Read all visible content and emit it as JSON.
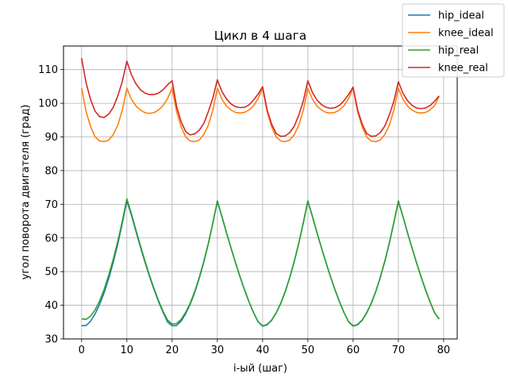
{
  "chart_data": {
    "type": "line",
    "title": "Цикл в 4 шага",
    "xlabel": "i-ый (шаг)",
    "ylabel": "угол поворота двигателя (град)",
    "xlim": [
      -4,
      83
    ],
    "ylim": [
      30,
      117
    ],
    "xticks": [
      0,
      10,
      20,
      30,
      40,
      50,
      60,
      70,
      80
    ],
    "yticks": [
      30,
      40,
      50,
      60,
      70,
      80,
      90,
      100,
      110
    ],
    "grid": true,
    "legend_position": "top-right",
    "x": [
      0,
      1,
      2,
      3,
      4,
      5,
      6,
      7,
      8,
      9,
      10,
      11,
      12,
      13,
      14,
      15,
      16,
      17,
      18,
      19,
      20,
      21,
      22,
      23,
      24,
      25,
      26,
      27,
      28,
      29,
      30,
      31,
      32,
      33,
      34,
      35,
      36,
      37,
      38,
      39,
      40,
      41,
      42,
      43,
      44,
      45,
      46,
      47,
      48,
      49,
      50,
      51,
      52,
      53,
      54,
      55,
      56,
      57,
      58,
      59,
      60,
      61,
      62,
      63,
      64,
      65,
      66,
      67,
      68,
      69,
      70,
      71,
      72,
      73,
      74,
      75,
      76,
      77,
      78,
      79
    ],
    "series": [
      {
        "name": "hip_ideal",
        "color": "#1f77b4",
        "values": [
          33.9,
          34.0,
          35.3,
          37.5,
          40.3,
          43.8,
          48.0,
          52.8,
          58.2,
          64.4,
          71.0,
          66.8,
          62.0,
          57.3,
          52.8,
          48.6,
          44.7,
          41.1,
          37.9,
          35.0,
          33.9,
          34.0,
          35.3,
          37.5,
          40.3,
          43.8,
          48.0,
          52.8,
          58.2,
          64.4,
          71.0,
          66.4,
          61.6,
          57.1,
          52.7,
          48.5,
          44.6,
          41.0,
          37.8,
          35.1,
          33.9,
          34.3,
          35.6,
          37.8,
          40.6,
          44.1,
          48.3,
          53.1,
          58.5,
          64.6,
          71.0,
          66.4,
          61.6,
          57.1,
          52.7,
          48.5,
          44.6,
          41.0,
          37.8,
          35.1,
          33.9,
          34.3,
          35.6,
          37.8,
          40.6,
          44.1,
          48.3,
          53.1,
          58.5,
          64.6,
          71.0,
          66.4,
          61.6,
          57.1,
          52.7,
          48.5,
          44.6,
          41.0,
          37.8,
          36.0
        ]
      },
      {
        "name": "knee_ideal",
        "color": "#ff7f0e",
        "values": [
          104.5,
          97.5,
          93.0,
          90.0,
          88.8,
          88.6,
          89.1,
          90.7,
          93.5,
          98.0,
          104.5,
          101.2,
          99.2,
          98.0,
          97.2,
          97.0,
          97.2,
          98.0,
          99.3,
          101.4,
          104.5,
          97.5,
          93.0,
          90.0,
          88.8,
          88.6,
          89.1,
          90.7,
          93.5,
          98.0,
          104.5,
          101.2,
          99.2,
          98.0,
          97.3,
          97.1,
          97.3,
          98.0,
          99.3,
          101.4,
          104.5,
          97.5,
          93.0,
          90.0,
          88.8,
          88.6,
          89.1,
          90.7,
          93.5,
          98.0,
          104.5,
          101.2,
          99.2,
          98.0,
          97.3,
          97.1,
          97.3,
          98.0,
          99.3,
          101.4,
          104.5,
          97.5,
          93.0,
          90.0,
          88.8,
          88.6,
          89.1,
          90.7,
          93.5,
          98.0,
          104.5,
          101.2,
          99.2,
          98.0,
          97.3,
          97.1,
          97.3,
          98.0,
          99.3,
          102.0
        ]
      },
      {
        "name": "hip_real",
        "color": "#2ca02c",
        "values": [
          36.0,
          35.8,
          36.8,
          38.7,
          41.3,
          44.8,
          49.0,
          53.7,
          59.0,
          65.0,
          71.6,
          67.2,
          62.4,
          57.7,
          53.2,
          48.9,
          45.0,
          41.4,
          38.2,
          35.6,
          34.4,
          34.6,
          35.8,
          37.9,
          40.6,
          44.1,
          48.3,
          53.0,
          58.4,
          64.4,
          70.9,
          66.4,
          61.6,
          57.1,
          52.7,
          48.5,
          44.6,
          41.0,
          37.8,
          35.1,
          33.8,
          34.2,
          35.5,
          37.7,
          40.5,
          44.0,
          48.2,
          53.0,
          58.4,
          64.5,
          70.9,
          66.4,
          61.6,
          57.1,
          52.7,
          48.5,
          44.6,
          41.0,
          37.8,
          35.1,
          33.8,
          34.2,
          35.5,
          37.7,
          40.5,
          44.0,
          48.2,
          53.0,
          58.4,
          64.5,
          70.8,
          66.4,
          61.6,
          57.1,
          52.7,
          48.5,
          44.6,
          41.0,
          37.8,
          35.9
        ]
      },
      {
        "name": "knee_real",
        "color": "#d62728",
        "values": [
          113.4,
          106.0,
          101.0,
          97.6,
          96.0,
          95.8,
          96.8,
          98.8,
          102.2,
          106.5,
          112.5,
          108.5,
          105.8,
          104.0,
          103.0,
          102.6,
          102.6,
          103.0,
          104.0,
          105.5,
          106.7,
          99.0,
          94.5,
          91.6,
          90.6,
          90.9,
          92.0,
          94.0,
          97.5,
          101.5,
          107.0,
          103.5,
          101.3,
          99.8,
          99.0,
          98.7,
          98.8,
          99.5,
          101.0,
          102.7,
          104.9,
          98.0,
          93.8,
          91.0,
          90.2,
          90.3,
          91.3,
          93.2,
          96.5,
          100.7,
          106.7,
          103.2,
          101.0,
          99.6,
          98.8,
          98.5,
          98.7,
          99.4,
          100.8,
          102.6,
          104.8,
          98.0,
          93.8,
          91.0,
          90.2,
          90.3,
          91.3,
          93.2,
          96.5,
          100.6,
          106.4,
          103.0,
          100.8,
          99.4,
          98.6,
          98.4,
          98.6,
          99.3,
          100.6,
          102.2
        ]
      }
    ]
  }
}
